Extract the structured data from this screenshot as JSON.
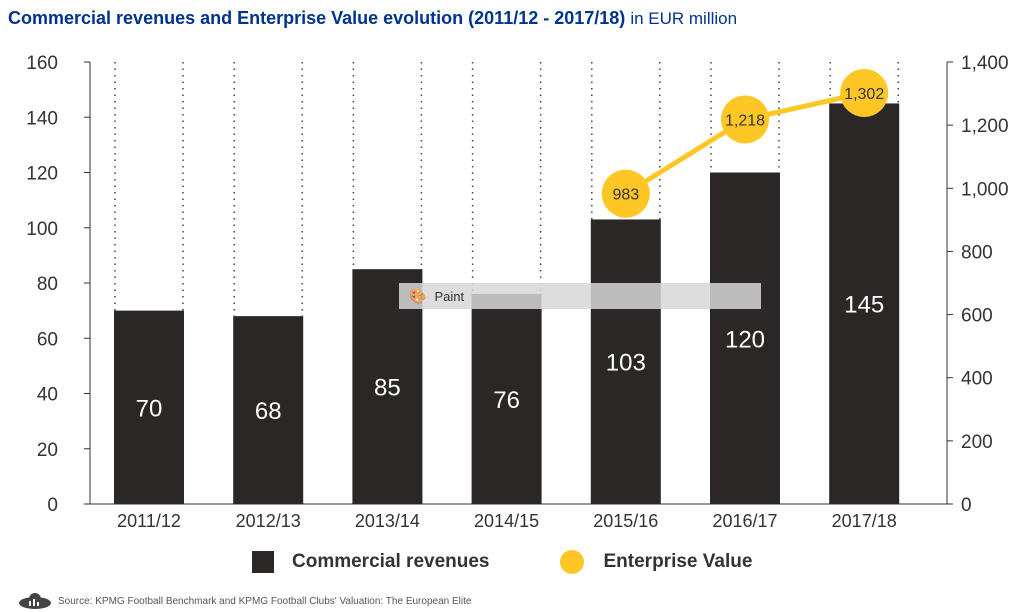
{
  "chart_data": {
    "type": "bar+line",
    "title": "Commercial revenues and Enterprise Value evolution (2011/12 - 2017/18)",
    "unit": "in EUR million",
    "categories": [
      "2011/12",
      "2012/13",
      "2013/14",
      "2014/15",
      "2015/16",
      "2016/17",
      "2017/18"
    ],
    "series": [
      {
        "name": "Commercial revenues",
        "type": "bar",
        "axis": "left",
        "color": "#2a2726",
        "values": [
          70,
          68,
          85,
          76,
          103,
          120,
          145
        ]
      },
      {
        "name": "Enterprise Value",
        "type": "line",
        "axis": "right",
        "color": "#FFC726",
        "values": [
          null,
          null,
          null,
          null,
          983,
          1218,
          1302
        ],
        "labels": [
          "",
          "",
          "",
          "",
          "983",
          "1,218",
          "1,302"
        ]
      }
    ],
    "left_axis": {
      "ylim": [
        0,
        160
      ],
      "ticks": [
        "0",
        "20",
        "40",
        "60",
        "80",
        "100",
        "120",
        "140",
        "160"
      ]
    },
    "right_axis": {
      "ylim": [
        0,
        1400
      ],
      "ticks": [
        "0",
        "200",
        "400",
        "600",
        "800",
        "1,000",
        "1,200",
        "1,400"
      ]
    },
    "legend_position": "bottom"
  },
  "source": "Source: KPMG Football Benchmark and KPMG Football Clubs' Valuation: The European Elite",
  "overlay": {
    "label": "Paint"
  }
}
